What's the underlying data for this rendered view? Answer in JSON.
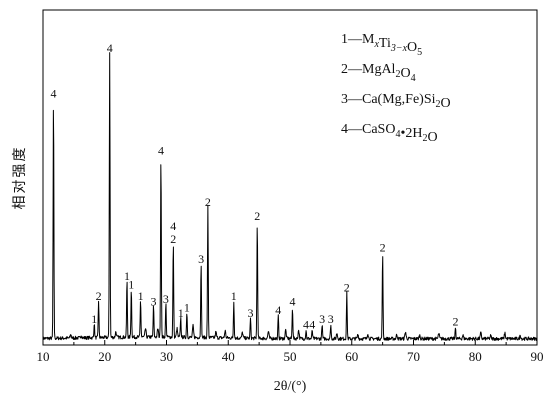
{
  "chart_data": {
    "type": "line",
    "title": "",
    "xlabel": "2θ/(°)",
    "ylabel": "相对强度",
    "xlim": [
      10,
      90
    ],
    "x_ticks": [
      10,
      20,
      30,
      40,
      50,
      60,
      70,
      80,
      90
    ],
    "y_ticks_shown": false,
    "grid": false,
    "legend_position": "top-right",
    "line_color": "#000000",
    "legend": [
      {
        "key": "1",
        "sep": "—",
        "parts": [
          [
            "M",
            ""
          ],
          [
            "x",
            "sub"
          ],
          [
            "Ti",
            ""
          ],
          [
            "3−x",
            "sub"
          ],
          [
            "O",
            ""
          ],
          [
            "5",
            "sub"
          ]
        ]
      },
      {
        "key": "2",
        "sep": "—",
        "parts": [
          [
            "MgAl",
            ""
          ],
          [
            "2",
            "sub"
          ],
          [
            "O",
            ""
          ],
          [
            "4",
            "sub"
          ]
        ]
      },
      {
        "key": "3",
        "sep": "—",
        "parts": [
          [
            "Ca(Mg,Fe)Si",
            ""
          ],
          [
            "2",
            "sub"
          ],
          [
            "O",
            ""
          ]
        ]
      },
      {
        "key": "4",
        "sep": "—",
        "parts": [
          [
            "CaSO",
            ""
          ],
          [
            "4",
            "sub"
          ],
          [
            "•2H",
            ""
          ],
          [
            "2",
            "sub"
          ],
          [
            "O",
            ""
          ]
        ]
      }
    ],
    "peaks": [
      {
        "x": 11.7,
        "y": 0.84,
        "label": "4"
      },
      {
        "x": 18.3,
        "y": 0.05,
        "label": "1"
      },
      {
        "x": 19.0,
        "y": 0.13,
        "label": "2"
      },
      {
        "x": 20.8,
        "y": 1.0,
        "label": "4"
      },
      {
        "x": 23.6,
        "y": 0.2,
        "label": "1"
      },
      {
        "x": 24.3,
        "y": 0.17,
        "label": "1"
      },
      {
        "x": 25.8,
        "y": 0.13,
        "label": "1"
      },
      {
        "x": 27.9,
        "y": 0.11,
        "label": "3"
      },
      {
        "x": 29.1,
        "y": 0.64,
        "label": "4"
      },
      {
        "x": 29.9,
        "y": 0.12,
        "label": "3"
      },
      {
        "x": 31.1,
        "y": 0.33,
        "label": "4\n2"
      },
      {
        "x": 32.3,
        "y": 0.07,
        "label": "1"
      },
      {
        "x": 33.3,
        "y": 0.09,
        "label": "1"
      },
      {
        "x": 35.6,
        "y": 0.26,
        "label": "3"
      },
      {
        "x": 36.7,
        "y": 0.46,
        "label": "2"
      },
      {
        "x": 40.9,
        "y": 0.13,
        "label": "1"
      },
      {
        "x": 43.6,
        "y": 0.07,
        "label": "3"
      },
      {
        "x": 44.7,
        "y": 0.41,
        "label": "2"
      },
      {
        "x": 48.1,
        "y": 0.08,
        "label": "4"
      },
      {
        "x": 50.4,
        "y": 0.11,
        "label": "4"
      },
      {
        "x": 52.6,
        "y": 0.03,
        "label": "4"
      },
      {
        "x": 53.6,
        "y": 0.03,
        "label": "4"
      },
      {
        "x": 55.2,
        "y": 0.05,
        "label": "3"
      },
      {
        "x": 56.6,
        "y": 0.05,
        "label": "3"
      },
      {
        "x": 59.2,
        "y": 0.16,
        "label": "2"
      },
      {
        "x": 65.0,
        "y": 0.3,
        "label": "2"
      },
      {
        "x": 76.8,
        "y": 0.04,
        "label": "2"
      }
    ],
    "minor_bumps": [
      [
        14.5,
        0.012
      ],
      [
        16.2,
        0.01
      ],
      [
        21.8,
        0.02
      ],
      [
        26.6,
        0.03
      ],
      [
        28.6,
        0.03
      ],
      [
        31.7,
        0.03
      ],
      [
        34.3,
        0.04
      ],
      [
        38.0,
        0.02
      ],
      [
        39.5,
        0.025
      ],
      [
        42.3,
        0.02
      ],
      [
        46.5,
        0.025
      ],
      [
        49.3,
        0.03
      ],
      [
        51.4,
        0.03
      ],
      [
        57.6,
        0.02
      ],
      [
        61.0,
        0.015
      ],
      [
        62.6,
        0.02
      ],
      [
        67.3,
        0.015
      ],
      [
        68.7,
        0.025
      ],
      [
        71.0,
        0.012
      ],
      [
        74.1,
        0.018
      ],
      [
        78.0,
        0.012
      ],
      [
        80.9,
        0.02
      ],
      [
        82.5,
        0.01
      ],
      [
        84.8,
        0.02
      ],
      [
        87.3,
        0.012
      ]
    ]
  }
}
